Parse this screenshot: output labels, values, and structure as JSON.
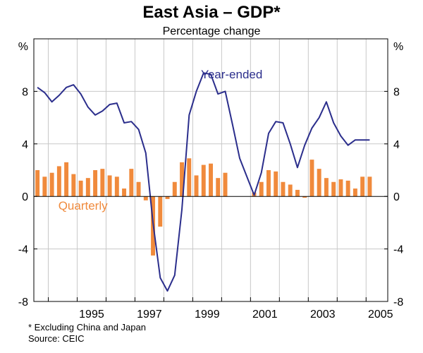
{
  "chart_data": {
    "type": "bar+line",
    "title": "East Asia – GDP*",
    "subtitle": "Percentage change",
    "ylabel_left": "%",
    "ylabel_right": "%",
    "ylim": [
      -8,
      12
    ],
    "yticks": [
      -8,
      -4,
      0,
      4,
      8
    ],
    "xlim": [
      1993.5,
      2005.75
    ],
    "xticks": [
      1995,
      1997,
      1999,
      2001,
      2003,
      2005
    ],
    "colors": {
      "line": "#2b2e8c",
      "bars": "#f08a3c"
    },
    "series": [
      {
        "name": "Year-ended",
        "kind": "line",
        "x": [
          1993.625,
          1993.875,
          1994.125,
          1994.375,
          1994.625,
          1994.875,
          1995.125,
          1995.375,
          1995.625,
          1995.875,
          1996.125,
          1996.375,
          1996.625,
          1996.875,
          1997.125,
          1997.375,
          1997.625,
          1997.875,
          1998.125,
          1998.375,
          1998.625,
          1998.875,
          1999.125,
          1999.375,
          1999.625,
          1999.875,
          2000.125,
          2000.375,
          2000.625,
          2000.875,
          2001.125,
          2001.375,
          2001.625,
          2001.875,
          2002.125,
          2002.375,
          2002.625,
          2002.875,
          2003.125,
          2003.375,
          2003.625,
          2003.875,
          2004.125,
          2004.375,
          2004.625,
          2004.875,
          2005.125
        ],
        "values": [
          8.3,
          7.9,
          7.2,
          7.7,
          8.3,
          8.5,
          7.8,
          6.8,
          6.2,
          6.5,
          7.0,
          7.1,
          5.6,
          5.7,
          5.1,
          3.3,
          -2.0,
          -6.2,
          -7.2,
          -6.0,
          -1.0,
          6.2,
          8.0,
          9.4,
          9.3,
          7.8,
          8.0,
          5.5,
          2.9,
          1.5,
          0.1,
          1.8,
          4.8,
          5.7,
          5.6,
          4.0,
          2.2,
          3.9,
          5.2,
          6.0,
          7.2,
          5.6,
          4.6,
          3.9,
          4.3,
          4.3,
          4.3
        ]
      },
      {
        "name": "Quarterly",
        "kind": "bar",
        "x": [
          1993.625,
          1993.875,
          1994.125,
          1994.375,
          1994.625,
          1994.875,
          1995.125,
          1995.375,
          1995.625,
          1995.875,
          1996.125,
          1996.375,
          1996.625,
          1996.875,
          1997.125,
          1997.375,
          1997.625,
          1997.875,
          1998.125,
          1998.375,
          1998.625,
          1998.875,
          1999.125,
          1999.375,
          1999.625,
          1999.875,
          2000.125,
          2000.375,
          2000.625,
          2000.875,
          2001.125,
          2001.375,
          2001.625,
          2001.875,
          2002.125,
          2002.375,
          2002.625,
          2002.875,
          2003.125,
          2003.375,
          2003.625,
          2003.875,
          2004.125,
          2004.375,
          2004.625,
          2004.875,
          2005.125
        ],
        "values": [
          2.0,
          1.5,
          1.8,
          2.3,
          2.6,
          1.7,
          1.2,
          1.4,
          2.0,
          2.1,
          1.6,
          1.5,
          0.6,
          2.1,
          1.1,
          -0.3,
          -4.5,
          -2.3,
          -0.2,
          1.1,
          2.6,
          2.9,
          1.6,
          2.4,
          2.5,
          1.4,
          1.8,
          0.0,
          0.0,
          0.0,
          0.3,
          1.1,
          2.0,
          1.9,
          1.1,
          0.9,
          0.5,
          -0.1,
          2.8,
          2.1,
          1.4,
          1.1,
          1.3,
          1.2,
          0.6,
          1.5,
          1.5
        ]
      }
    ],
    "labels": {
      "line": "Year-ended",
      "bars": "Quarterly"
    }
  },
  "footnotes": {
    "note": "* Excluding China and Japan",
    "source": "Source: CEIC"
  }
}
